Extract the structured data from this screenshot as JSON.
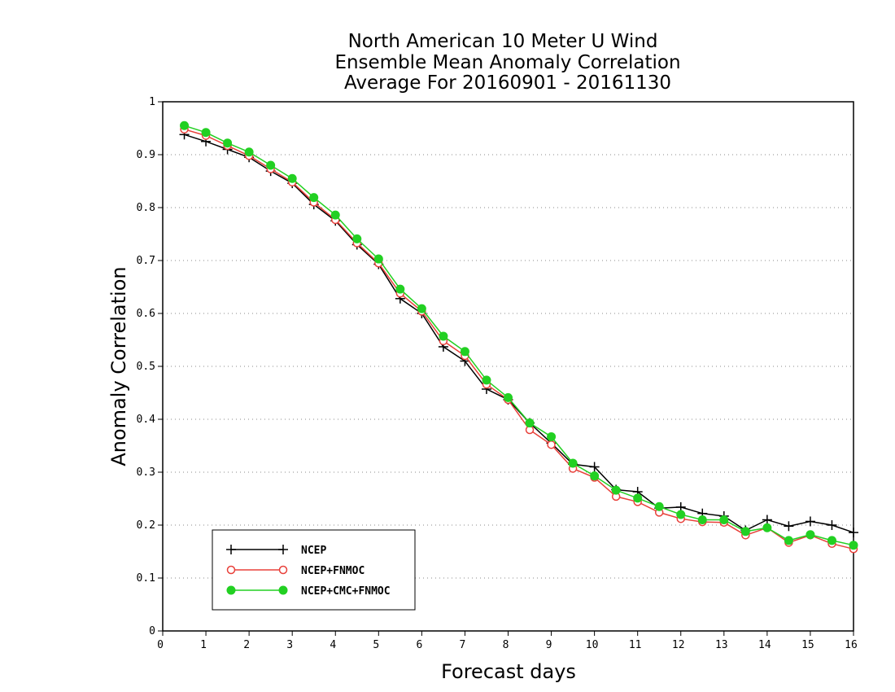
{
  "chart_data": {
    "type": "line",
    "title": [
      "North American 10 Meter U Wind",
      "Ensemble Mean Anomaly Correlation",
      "Average For 20160901 - 20161130"
    ],
    "xlabel": "Forecast days",
    "ylabel": "Anomaly Correlation",
    "xlim": [
      0,
      16
    ],
    "ylim": [
      0,
      1
    ],
    "xticks": [
      0,
      1,
      2,
      3,
      4,
      5,
      6,
      7,
      8,
      9,
      10,
      11,
      12,
      13,
      14,
      15,
      16
    ],
    "yticks": [
      0,
      0.1,
      0.2,
      0.3,
      0.4,
      0.5,
      0.6,
      0.7,
      0.8,
      0.9,
      1
    ],
    "ytick_labels": [
      "0",
      "0.1",
      "0.2",
      "0.3",
      "0.4",
      "0.5",
      "0.6",
      "0.7",
      "0.8",
      "0.9",
      "1"
    ],
    "grid": "horizontal dotted",
    "legend_position": "bottom-left",
    "x": [
      0.5,
      1,
      1.5,
      2,
      2.5,
      3,
      3.5,
      4,
      4.5,
      5,
      5.5,
      6,
      6.5,
      7,
      7.5,
      8,
      8.5,
      9,
      9.5,
      10,
      10.5,
      11,
      11.5,
      12,
      12.5,
      13,
      13.5,
      14,
      14.5,
      15,
      15.5,
      16
    ],
    "series": [
      {
        "name": "NCEP",
        "color": "#000000",
        "marker": "plus",
        "values": [
          0.938,
          0.925,
          0.91,
          0.895,
          0.869,
          0.846,
          0.806,
          0.775,
          0.73,
          0.693,
          0.628,
          0.6,
          0.537,
          0.51,
          0.457,
          0.437,
          0.393,
          0.355,
          0.315,
          0.31,
          0.267,
          0.263,
          0.232,
          0.234,
          0.222,
          0.217,
          0.19,
          0.21,
          0.198,
          0.207,
          0.2,
          0.186
        ]
      },
      {
        "name": "NCEP+FNMOC",
        "color": "#e8403a",
        "marker": "open-circle",
        "values": [
          0.948,
          0.936,
          0.917,
          0.898,
          0.873,
          0.848,
          0.81,
          0.777,
          0.733,
          0.695,
          0.638,
          0.604,
          0.548,
          0.52,
          0.466,
          0.437,
          0.38,
          0.352,
          0.307,
          0.29,
          0.254,
          0.244,
          0.224,
          0.212,
          0.206,
          0.205,
          0.181,
          0.195,
          0.167,
          0.181,
          0.165,
          0.155
        ]
      },
      {
        "name": "NCEP+CMC+FNMOC",
        "color": "#22d022",
        "marker": "filled-circle",
        "values": [
          0.955,
          0.942,
          0.922,
          0.905,
          0.88,
          0.855,
          0.819,
          0.786,
          0.741,
          0.703,
          0.646,
          0.609,
          0.557,
          0.528,
          0.474,
          0.441,
          0.393,
          0.367,
          0.317,
          0.293,
          0.266,
          0.251,
          0.235,
          0.22,
          0.21,
          0.21,
          0.188,
          0.195,
          0.171,
          0.182,
          0.171,
          0.162
        ]
      }
    ]
  }
}
